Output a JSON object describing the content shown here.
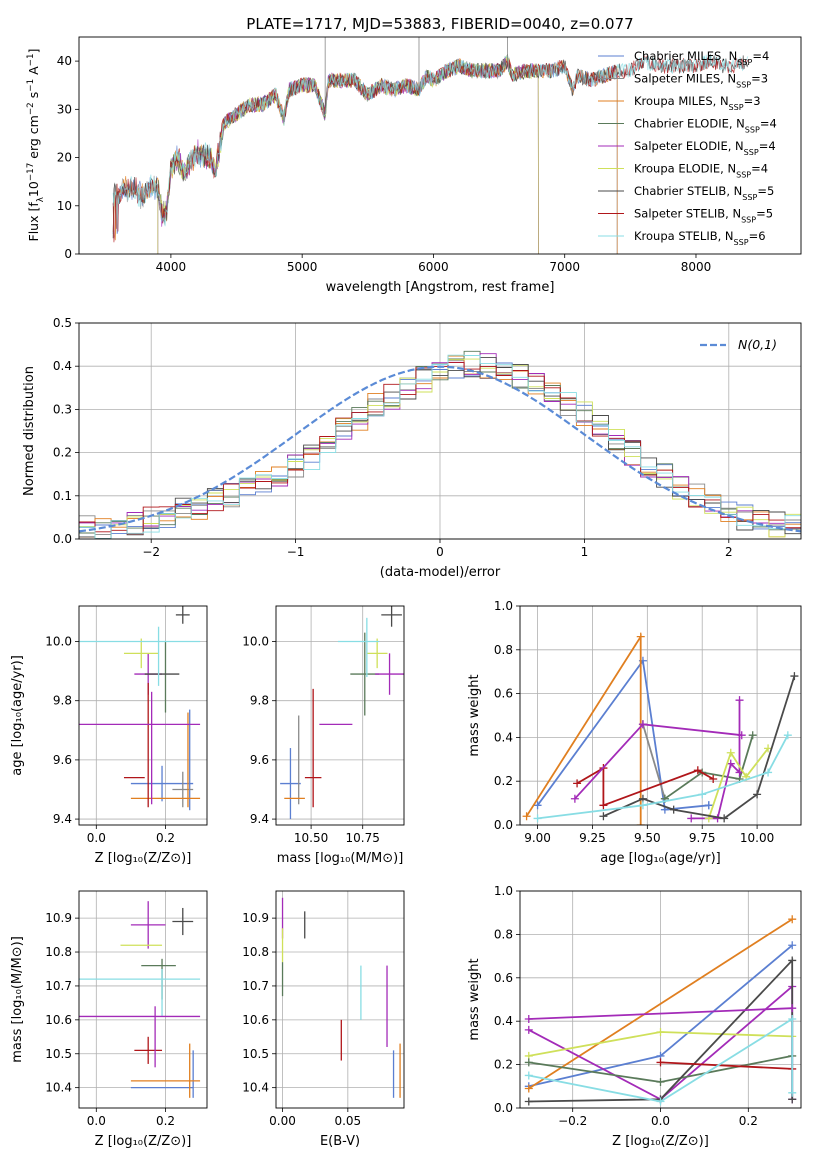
{
  "colors": {
    "Chabrier MILES": "#5b7fd1",
    "Salpeter MILES": "#8a8a8a",
    "Kroupa MILES": "#e07f20",
    "Chabrier ELODIE": "#5a7a5a",
    "Salpeter ELODIE": "#a32bb8",
    "Kroupa ELODIE": "#cfe05a",
    "Chabrier STELIB": "#4a4a4a",
    "Salpeter STELIB": "#b0161a",
    "Kroupa STELIB": "#88dde4",
    "normal": "#5b8bd6"
  },
  "chart_data": [
    {
      "type": "line",
      "title": "PLATE=1717, MJD=53883, FIBERID=0040, z=0.077",
      "xlabel": "wavelength [Angstrom, rest frame]",
      "ylabel": "Flux [f_λ10^{-17} erg cm^{-2} s^{-1} A^{-1}]",
      "xlim": [
        3300,
        8800
      ],
      "ylim": [
        0,
        45
      ],
      "xticks": [
        4000,
        5000,
        6000,
        7000,
        8000
      ],
      "yticks": [
        0,
        10,
        20,
        30,
        40
      ],
      "grid": false,
      "legend_position": "top-right",
      "spectrum_anchors": {
        "x": [
          3560,
          3620,
          3700,
          3780,
          3850,
          3900,
          3933,
          3968,
          4000,
          4050,
          4100,
          4200,
          4300,
          4340,
          4400,
          4500,
          4600,
          4700,
          4800,
          4861,
          4900,
          5000,
          5100,
          5175,
          5200,
          5300,
          5400,
          5500,
          5600,
          5700,
          5800,
          5890,
          5950,
          6000,
          6100,
          6200,
          6300,
          6400,
          6500,
          6563,
          6600,
          6700,
          6800,
          6900,
          7000,
          7060,
          7100,
          7200,
          7300,
          7400,
          7500,
          7600,
          7700,
          7800,
          7900,
          8000,
          8100,
          8200,
          8300,
          8400
        ],
        "y": [
          12,
          13,
          14,
          12,
          14,
          14,
          8,
          9,
          18,
          20,
          17,
          21,
          20,
          17,
          27,
          29,
          31,
          31,
          33,
          28,
          34,
          35,
          35,
          29,
          36,
          36,
          36,
          33,
          35,
          34,
          35,
          34,
          37,
          36,
          38,
          39,
          38,
          38,
          38,
          40,
          37,
          38,
          38,
          38,
          39,
          34,
          37,
          36,
          37,
          38,
          38,
          40,
          39,
          39,
          39,
          39,
          40,
          39,
          39,
          40
        ]
      },
      "series": [
        {
          "name": "Chabrier MILES, N_{SSP}=4",
          "start": 3560,
          "end": 7400
        },
        {
          "name": "Salpeter MILES, N_{SSP}=3",
          "start": 3560,
          "end": 7400
        },
        {
          "name": "Kroupa MILES, N_{SSP}=3",
          "start": 3560,
          "end": 7400
        },
        {
          "name": "Chabrier ELODIE, N_{SSP}=4",
          "start": 3900,
          "end": 6800
        },
        {
          "name": "Salpeter ELODIE, N_{SSP}=4",
          "start": 3900,
          "end": 6800
        },
        {
          "name": "Kroupa ELODIE, N_{SSP}=4",
          "start": 3900,
          "end": 6800
        },
        {
          "name": "Chabrier STELIB, N_{SSP}=5",
          "start": 3560,
          "end": 8400
        },
        {
          "name": "Salpeter STELIB, N_{SSP}=5",
          "start": 3560,
          "end": 8400
        },
        {
          "name": "Kroupa STELIB, N_{SSP}=6",
          "start": 3560,
          "end": 8400
        }
      ]
    },
    {
      "type": "histogram",
      "xlabel": "(data-model)/error",
      "ylabel": "Normed distribution",
      "xlim": [
        -2.5,
        2.5
      ],
      "ylim": [
        0,
        0.5
      ],
      "xticks": [
        -2,
        -1,
        0,
        1,
        2
      ],
      "yticks": [
        0.0,
        0.1,
        0.2,
        0.3,
        0.4,
        0.5
      ],
      "grid": true,
      "legend": "N(0,1)",
      "legend_position": "top-right",
      "bin_edges_range": [
        -2.5,
        2.5
      ],
      "bin_count": 45,
      "profile": [
        0.03,
        0.025,
        0.03,
        0.035,
        0.045,
        0.055,
        0.065,
        0.075,
        0.09,
        0.1,
        0.115,
        0.13,
        0.15,
        0.17,
        0.19,
        0.22,
        0.25,
        0.28,
        0.31,
        0.33,
        0.35,
        0.37,
        0.39,
        0.4,
        0.405,
        0.4,
        0.39,
        0.375,
        0.355,
        0.34,
        0.315,
        0.29,
        0.26,
        0.23,
        0.2,
        0.17,
        0.145,
        0.12,
        0.1,
        0.08,
        0.065,
        0.05,
        0.04,
        0.035,
        0.03
      ]
    },
    {
      "type": "scatter",
      "xlabel": "Z [log10(Z/Z_⊙)]",
      "ylabel": "age [log10(age/yr)]",
      "xlim": [
        -0.05,
        0.32
      ],
      "ylim": [
        9.38,
        10.12
      ],
      "xticks": [
        0.0,
        0.2
      ],
      "yticks": [
        9.4,
        9.6,
        9.8,
        10.0
      ],
      "grid": true,
      "points": [
        {
          "series": "Chabrier MILES",
          "x": 0.19,
          "xerr": 0.09,
          "y": 9.52,
          "yerr": 0.06
        },
        {
          "series": "Chabrier MILES",
          "x": 0.27,
          "xerr": 0.0,
          "y": 9.6,
          "yerr": 0.17
        },
        {
          "series": "Salpeter MILES",
          "x": 0.25,
          "xerr": 0.03,
          "y": 9.5,
          "yerr": 0.06
        },
        {
          "series": "Kroupa MILES",
          "x": 0.2,
          "xerr": 0.1,
          "y": 9.47,
          "yerr": 0.0
        },
        {
          "series": "Kroupa MILES",
          "x": 0.265,
          "xerr": 0.0,
          "y": 9.6,
          "yerr": 0.16
        },
        {
          "series": "Chabrier ELODIE",
          "x": 0.2,
          "xerr": 0.0,
          "y": 9.88,
          "yerr": 0.12
        },
        {
          "series": "Salpeter ELODIE",
          "x": 0.15,
          "xerr": 0.04,
          "y": 9.89,
          "yerr": 0.07
        },
        {
          "series": "Kroupa ELODIE",
          "x": 0.13,
          "xerr": 0.05,
          "y": 9.96,
          "yerr": 0.05
        },
        {
          "series": "Chabrier STELIB",
          "x": 0.25,
          "xerr": 0.02,
          "y": 10.09,
          "yerr": 0.03
        },
        {
          "series": "Chabrier STELIB",
          "x": 0.19,
          "xerr": 0.05,
          "y": 9.89,
          "yerr": 0.0
        },
        {
          "series": "Salpeter STELIB",
          "x": 0.15,
          "xerr": 0.0,
          "y": 9.65,
          "yerr": 0.21
        },
        {
          "series": "Salpeter STELIB",
          "x": 0.11,
          "xerr": 0.03,
          "y": 9.54,
          "yerr": 0.0
        },
        {
          "series": "Kroupa STELIB",
          "x": 0.18,
          "xerr": 0.0,
          "y": 9.95,
          "yerr": 0.1
        },
        {
          "series": "Kroupa STELIB",
          "x": 0.1,
          "xerr": 0.2,
          "y": 10.0,
          "yerr": 0.0
        },
        {
          "series": "Salpeter ELODIE",
          "x": 0.1,
          "xerr": 0.2,
          "y": 9.72,
          "yerr": 0.0
        },
        {
          "series": "Salpeter ELODIE",
          "x": 0.16,
          "xerr": 0.0,
          "y": 9.64,
          "yerr": 0.19
        }
      ]
    },
    {
      "type": "scatter",
      "xlabel": "mass [log10(M/M_⊙)]",
      "xlim": [
        10.33,
        10.95
      ],
      "ylim": [
        9.38,
        10.12
      ],
      "xticks": [
        10.5,
        10.75
      ],
      "yticks": [
        9.4,
        9.6,
        9.8,
        10.0
      ],
      "grid": true,
      "points": [
        {
          "series": "Chabrier MILES",
          "x": 10.4,
          "xerr": 0.05,
          "y": 9.52,
          "yerr": 0.12
        },
        {
          "series": "Salpeter MILES",
          "x": 10.44,
          "xerr": 0.0,
          "y": 9.6,
          "yerr": 0.15
        },
        {
          "series": "Kroupa MILES",
          "x": 10.42,
          "xerr": 0.05,
          "y": 9.47,
          "yerr": 0.0
        },
        {
          "series": "Chabrier ELODIE",
          "x": 10.76,
          "xerr": 0.07,
          "y": 9.89,
          "yerr": 0.14
        },
        {
          "series": "Salpeter ELODIE",
          "x": 10.88,
          "xerr": 0.07,
          "y": 9.89,
          "yerr": 0.07
        },
        {
          "series": "Kroupa ELODIE",
          "x": 10.82,
          "xerr": 0.05,
          "y": 9.96,
          "yerr": 0.05
        },
        {
          "series": "Chabrier STELIB",
          "x": 10.89,
          "xerr": 0.05,
          "y": 10.09,
          "yerr": 0.04
        },
        {
          "series": "Salpeter STELIB",
          "x": 10.51,
          "xerr": 0.04,
          "y": 9.54,
          "yerr": 0.0
        },
        {
          "series": "Salpeter STELIB",
          "x": 10.51,
          "xerr": 0.0,
          "y": 9.64,
          "yerr": 0.2
        },
        {
          "series": "Kroupa STELIB",
          "x": 10.73,
          "xerr": 0.1,
          "y": 10.0,
          "yerr": 0.0
        },
        {
          "series": "Kroupa STELIB",
          "x": 10.77,
          "xerr": 0.0,
          "y": 9.98,
          "yerr": 0.1
        },
        {
          "series": "Salpeter ELODIE",
          "x": 10.62,
          "xerr": 0.08,
          "y": 9.72,
          "yerr": 0.0
        }
      ]
    },
    {
      "type": "line",
      "xlabel": "age [log10(age/yr)]",
      "ylabel": "mass weight",
      "xlim": [
        8.92,
        10.2
      ],
      "ylim": [
        0.0,
        1.0
      ],
      "xticks": [
        9.0,
        9.25,
        9.5,
        9.75,
        10.0
      ],
      "yticks": [
        0.0,
        0.2,
        0.4,
        0.6,
        0.8,
        1.0
      ],
      "grid": true,
      "series": [
        {
          "name": "Chabrier MILES",
          "x": [
            9.0,
            9.48,
            9.58,
            9.78,
            9.78
          ],
          "y": [
            0.09,
            0.75,
            0.07,
            0.09,
            0.09
          ]
        },
        {
          "name": "Kroupa MILES",
          "x": [
            8.95,
            9.47,
            9.47
          ],
          "y": [
            0.04,
            0.86,
            0.0
          ]
        },
        {
          "name": "Salpeter MILES",
          "x": [
            9.48,
            9.48,
            9.58
          ],
          "y": [
            0.46,
            0.46,
            0.12
          ]
        },
        {
          "name": "Chabrier ELODIE",
          "x": [
            9.58,
            9.75,
            9.92,
            9.98
          ],
          "y": [
            0.12,
            0.24,
            0.21,
            0.41
          ]
        },
        {
          "name": "Salpeter ELODIE",
          "x": [
            9.7,
            9.82,
            9.88,
            9.92,
            9.92
          ],
          "y": [
            0.03,
            0.03,
            0.28,
            0.24,
            0.57
          ]
        },
        {
          "name": "Kroupa ELODIE",
          "x": [
            9.78,
            9.88,
            9.95,
            10.05
          ],
          "y": [
            0.03,
            0.33,
            0.22,
            0.35
          ]
        },
        {
          "name": "Chabrier STELIB",
          "x": [
            9.3,
            9.48,
            9.62,
            9.85,
            10.0,
            10.17
          ],
          "y": [
            0.04,
            0.12,
            0.07,
            0.03,
            0.14,
            0.68
          ]
        },
        {
          "name": "Salpeter STELIB",
          "x": [
            9.18,
            9.3,
            9.3,
            9.73,
            9.8
          ],
          "y": [
            0.19,
            0.26,
            0.09,
            0.25,
            0.21
          ]
        },
        {
          "name": "Kroupa STELIB",
          "x": [
            9.0,
            9.48,
            9.75,
            10.05,
            10.14
          ],
          "y": [
            0.03,
            0.09,
            0.14,
            0.24,
            0.41
          ]
        },
        {
          "name": "Salpeter ELODIE",
          "x": [
            9.17,
            9.48,
            9.93
          ],
          "y": [
            0.12,
            0.46,
            0.41
          ]
        }
      ]
    },
    {
      "type": "scatter",
      "xlabel": "Z [log10(Z/Z_⊙)]",
      "ylabel": "mass [log10(M/M_⊙)]",
      "xlim": [
        -0.05,
        0.32
      ],
      "ylim": [
        10.34,
        10.98
      ],
      "xticks": [
        0.0,
        0.2
      ],
      "yticks": [
        10.4,
        10.5,
        10.6,
        10.7,
        10.8,
        10.9
      ],
      "grid": true,
      "points": [
        {
          "series": "Chabrier MILES",
          "x": 0.19,
          "xerr": 0.09,
          "y": 10.4,
          "yerr": 0.0
        },
        {
          "series": "Chabrier MILES",
          "x": 0.28,
          "xerr": 0.0,
          "y": 10.44,
          "yerr": 0.07
        },
        {
          "series": "Kroupa MILES",
          "x": 0.2,
          "xerr": 0.1,
          "y": 10.42,
          "yerr": 0.0
        },
        {
          "series": "Kroupa MILES",
          "x": 0.27,
          "xerr": 0.0,
          "y": 10.45,
          "yerr": 0.08
        },
        {
          "series": "Chabrier ELODIE",
          "x": 0.18,
          "xerr": 0.05,
          "y": 10.76,
          "yerr": 0.0
        },
        {
          "series": "Chabrier ELODIE",
          "x": 0.19,
          "xerr": 0.0,
          "y": 10.72,
          "yerr": 0.06
        },
        {
          "series": "Salpeter ELODIE",
          "x": 0.15,
          "xerr": 0.05,
          "y": 10.88,
          "yerr": 0.07
        },
        {
          "series": "Kroupa ELODIE",
          "x": 0.13,
          "xerr": 0.06,
          "y": 10.82,
          "yerr": 0.0
        },
        {
          "series": "Chabrier STELIB",
          "x": 0.25,
          "xerr": 0.03,
          "y": 10.89,
          "yerr": 0.04
        },
        {
          "series": "Salpeter STELIB",
          "x": 0.15,
          "xerr": 0.04,
          "y": 10.51,
          "yerr": 0.04
        },
        {
          "series": "Kroupa STELIB",
          "x": 0.1,
          "xerr": 0.2,
          "y": 10.72,
          "yerr": 0.0
        },
        {
          "series": "Kroupa STELIB",
          "x": 0.19,
          "xerr": 0.0,
          "y": 10.68,
          "yerr": 0.07
        },
        {
          "series": "Salpeter ELODIE",
          "x": 0.1,
          "xerr": 0.2,
          "y": 10.61,
          "yerr": 0.0
        },
        {
          "series": "Salpeter ELODIE",
          "x": 0.17,
          "xerr": 0.0,
          "y": 10.55,
          "yerr": 0.09
        }
      ]
    },
    {
      "type": "scatter",
      "xlabel": "E(B-V)",
      "xlim": [
        -0.005,
        0.093
      ],
      "ylim": [
        10.34,
        10.98
      ],
      "xticks": [
        0.0,
        0.05
      ],
      "yticks": [
        10.4,
        10.5,
        10.6,
        10.7,
        10.8,
        10.9
      ],
      "grid": true,
      "points": [
        {
          "series": "Chabrier MILES",
          "x": 0.085,
          "xerr": 0.0,
          "y": 10.44,
          "yerr": 0.07
        },
        {
          "series": "Kroupa MILES",
          "x": 0.09,
          "xerr": 0.0,
          "y": 10.45,
          "yerr": 0.08
        },
        {
          "series": "Salpeter ELODIE",
          "x": 0.0,
          "xerr": 0.0,
          "y": 10.9,
          "yerr": 0.06
        },
        {
          "series": "Kroupa ELODIE",
          "x": 0.0,
          "xerr": 0.0,
          "y": 10.82,
          "yerr": 0.05
        },
        {
          "series": "Chabrier ELODIE",
          "x": 0.0,
          "xerr": 0.0,
          "y": 10.72,
          "yerr": 0.05
        },
        {
          "series": "Chabrier STELIB",
          "x": 0.017,
          "xerr": 0.0,
          "y": 10.88,
          "yerr": 0.04
        },
        {
          "series": "Salpeter STELIB",
          "x": 0.045,
          "xerr": 0.0,
          "y": 10.54,
          "yerr": 0.06
        },
        {
          "series": "Kroupa STELIB",
          "x": 0.06,
          "xerr": 0.0,
          "y": 10.68,
          "yerr": 0.08
        },
        {
          "series": "Salpeter ELODIE",
          "x": 0.08,
          "xerr": 0.0,
          "y": 10.64,
          "yerr": 0.12
        }
      ]
    },
    {
      "type": "line",
      "xlabel": "Z [log10(Z/Z_⊙)]",
      "ylabel": "mass weight",
      "xlim": [
        -0.32,
        0.32
      ],
      "ylim": [
        0.0,
        1.0
      ],
      "xticks": [
        -0.2,
        0.0,
        0.2
      ],
      "yticks": [
        0.0,
        0.2,
        0.4,
        0.6,
        0.8,
        1.0
      ],
      "grid": true,
      "series": [
        {
          "name": "Chabrier MILES",
          "x": [
            -0.3,
            0.0,
            0.3
          ],
          "y": [
            0.1,
            0.24,
            0.75
          ]
        },
        {
          "name": "Kroupa MILES",
          "x": [
            -0.3,
            0.3
          ],
          "y": [
            0.09,
            0.87
          ]
        },
        {
          "name": "Salpeter ELODIE",
          "x": [
            -0.3,
            0.0,
            0.3,
            0.3
          ],
          "y": [
            0.36,
            0.04,
            0.56,
            0.04
          ]
        },
        {
          "name": "Kroupa ELODIE",
          "x": [
            -0.3,
            0.0,
            0.3
          ],
          "y": [
            0.24,
            0.35,
            0.33
          ]
        },
        {
          "name": "Chabrier ELODIE",
          "x": [
            -0.3,
            0.0,
            0.3
          ],
          "y": [
            0.21,
            0.12,
            0.24
          ]
        },
        {
          "name": "Chabrier STELIB",
          "x": [
            -0.3,
            0.0,
            0.3,
            0.3
          ],
          "y": [
            0.03,
            0.04,
            0.68,
            0.04
          ]
        },
        {
          "name": "Salpeter STELIB",
          "x": [
            0.0,
            0.3
          ],
          "y": [
            0.21,
            0.18
          ]
        },
        {
          "name": "Kroupa STELIB",
          "x": [
            -0.3,
            0.0,
            0.3,
            0.3
          ],
          "y": [
            0.15,
            0.03,
            0.41,
            0.07
          ]
        },
        {
          "name": "Salpeter ELODIE",
          "x": [
            -0.3,
            0.3
          ],
          "y": [
            0.41,
            0.46
          ]
        }
      ]
    }
  ]
}
